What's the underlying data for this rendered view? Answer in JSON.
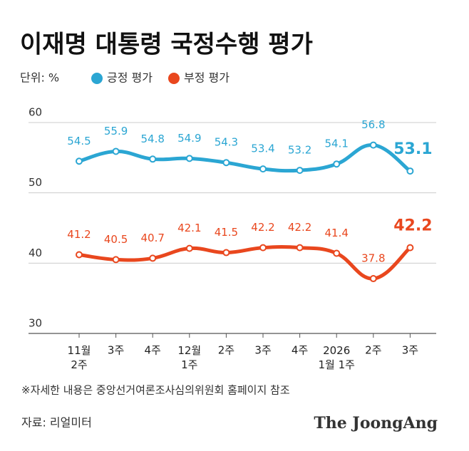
{
  "chart_data": {
    "type": "line",
    "title": "이재명 대통령 국정수행 평가",
    "unit_label": "단위: %",
    "note": "※자세한 내용은 중앙선거여론조사심의위원회 홈페이지 참조",
    "source": "자료: 리얼미터",
    "brand": "The JoongAng",
    "legend": "top-left",
    "grid": true,
    "categories": [
      "11월\n2주",
      "3주",
      "4주",
      "12월\n1주",
      "2주",
      "3주",
      "4주",
      "2026\n1월 1주",
      "2주",
      "3주"
    ],
    "series": [
      {
        "name": "긍정 평가",
        "color": "#2ba6d3",
        "values": [
          54.5,
          55.9,
          54.8,
          54.9,
          54.3,
          53.4,
          53.2,
          54.1,
          56.8,
          53.1
        ]
      },
      {
        "name": "부정 평가",
        "color": "#e9471e",
        "values": [
          41.2,
          40.5,
          40.7,
          42.1,
          41.5,
          42.2,
          42.2,
          41.4,
          37.8,
          42.2
        ]
      }
    ],
    "ylim": [
      30,
      60
    ],
    "yticks": [
      30,
      40,
      50,
      60
    ]
  }
}
